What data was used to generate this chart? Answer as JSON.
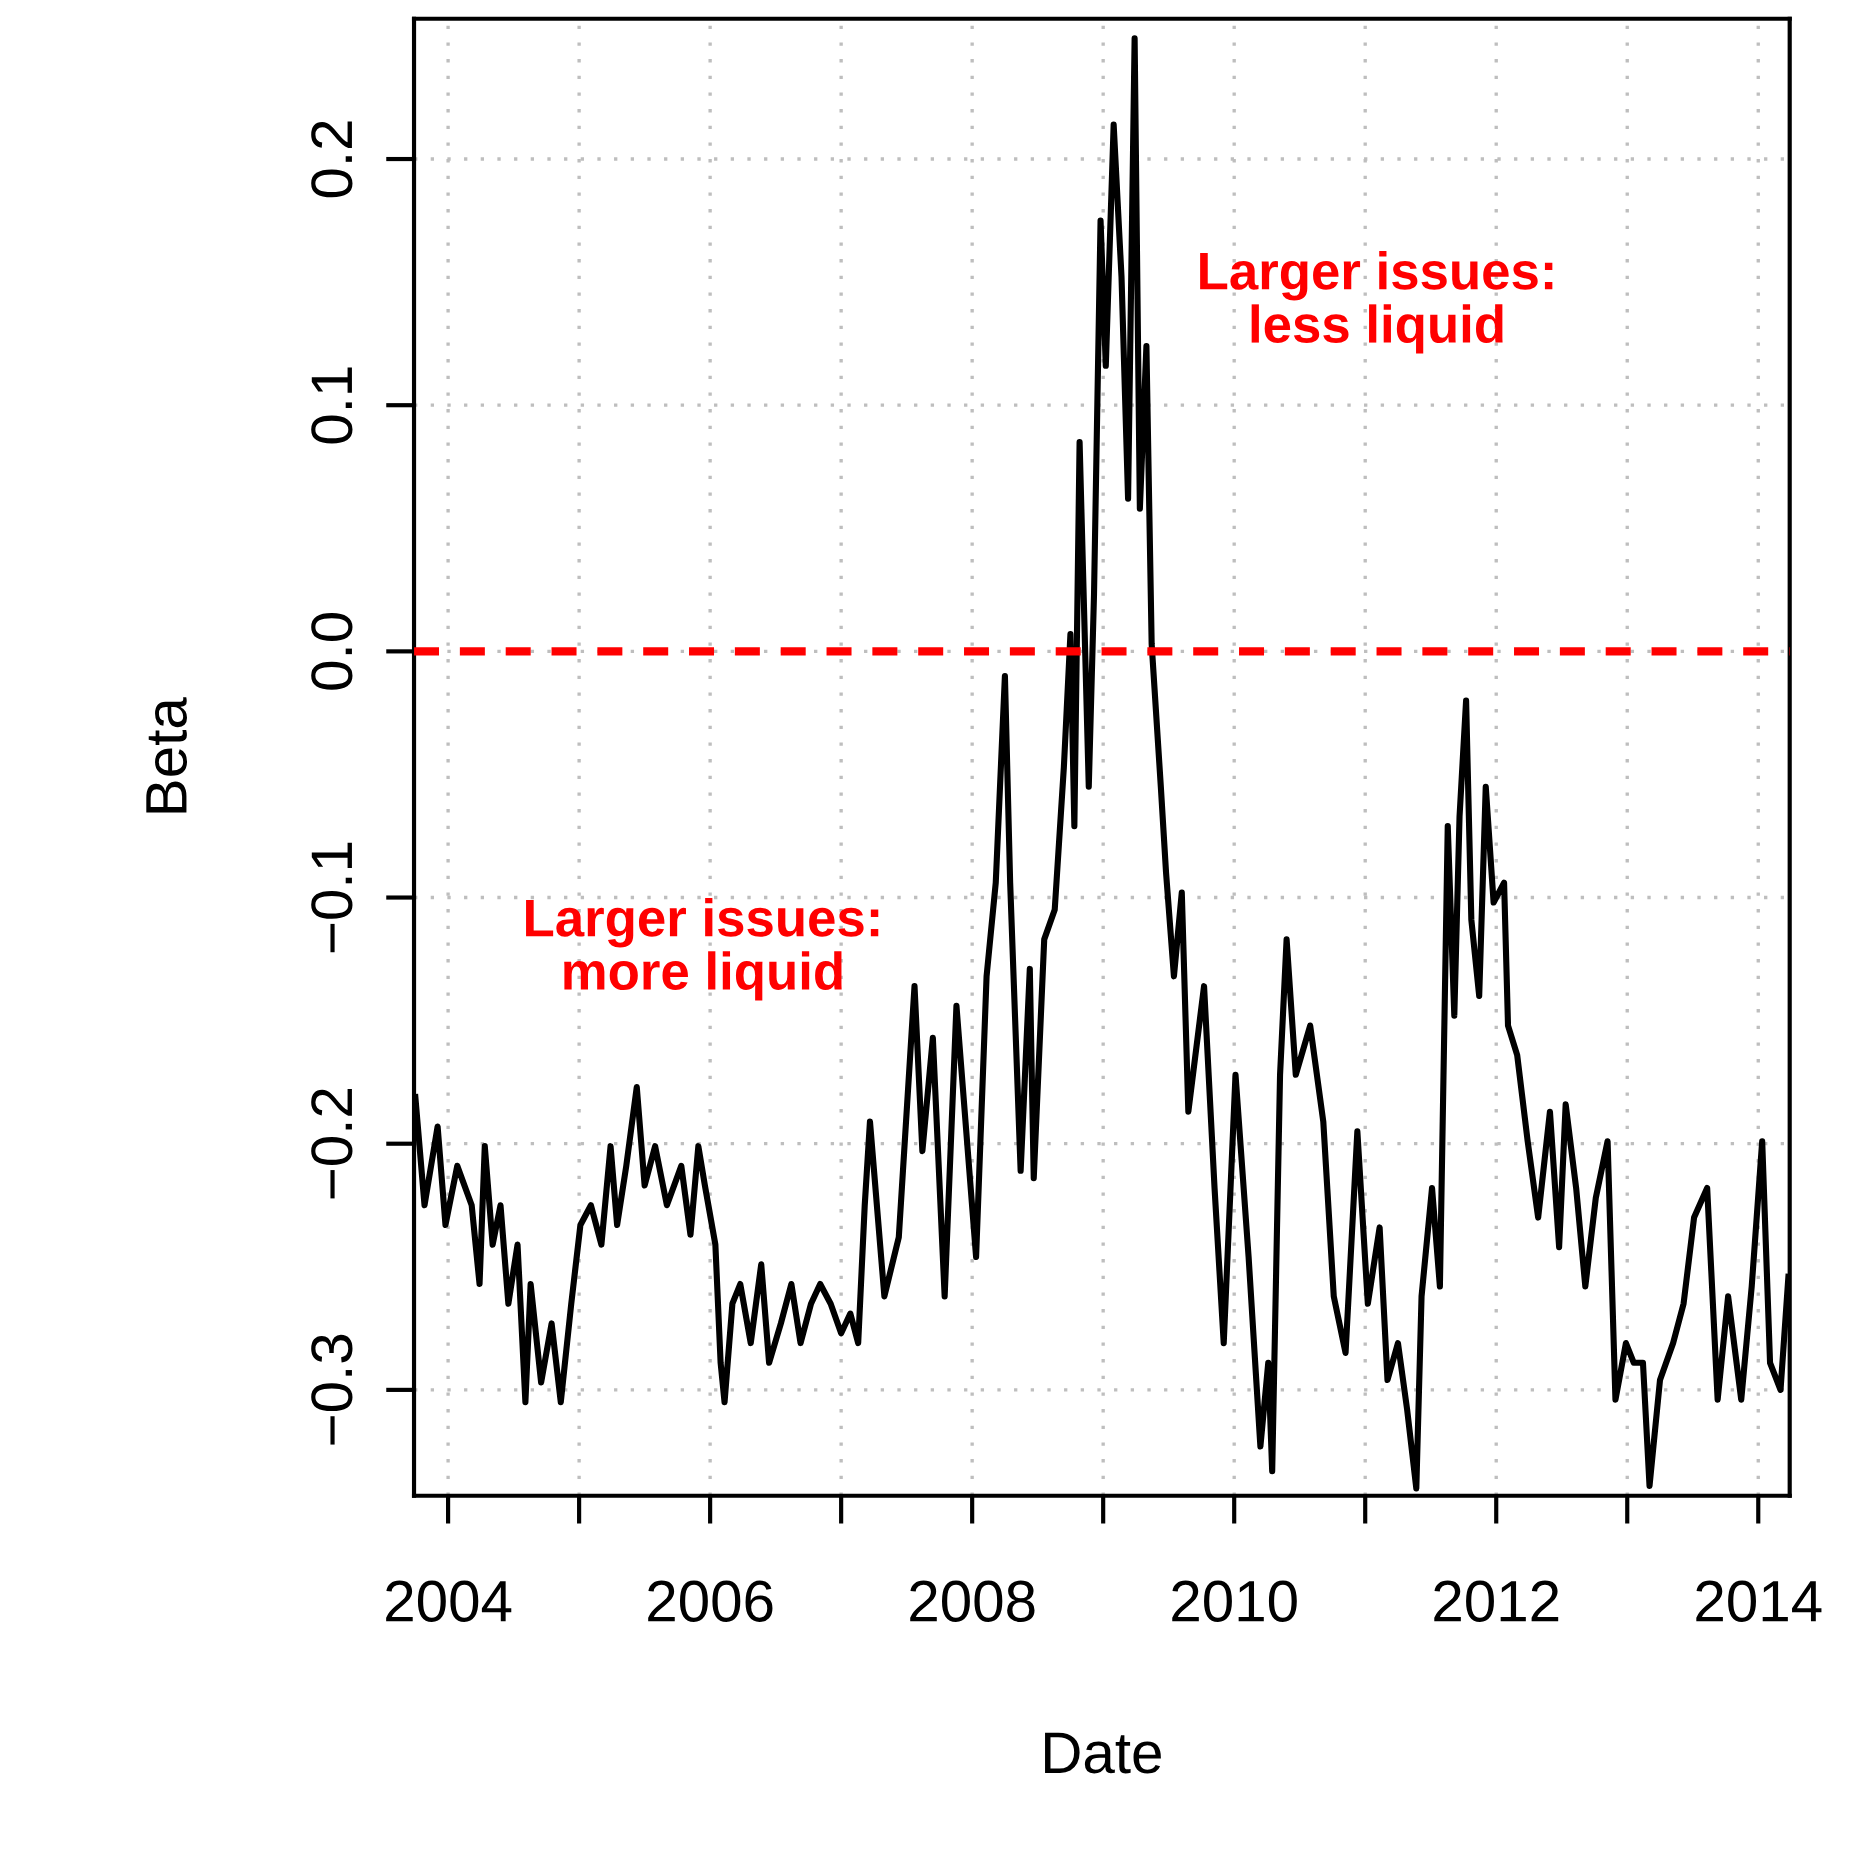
{
  "chart_data": {
    "type": "line",
    "xlabel": "Date",
    "ylabel": "Beta",
    "xlim": [
      2003.74,
      2014.24
    ],
    "ylim": [
      -0.343,
      0.257
    ],
    "xticks": [
      2004,
      {
        "value": 2005,
        "label": null
      },
      2006,
      {
        "value": 2007,
        "label": null
      },
      2008,
      {
        "value": 2009,
        "label": null
      },
      2010,
      {
        "value": 2011,
        "label": null
      },
      2012,
      {
        "value": 2013,
        "label": null
      },
      2014
    ],
    "yticks": [
      {
        "value": -0.3,
        "label": "−0.3"
      },
      {
        "value": -0.2,
        "label": "−0.2"
      },
      {
        "value": -0.1,
        "label": "−0.1"
      },
      {
        "value": 0,
        "label": "0.0"
      },
      0.1,
      0.2
    ],
    "grid": true,
    "line_style": "solid",
    "marker": "none",
    "ref_lines": [
      {
        "axis": "y",
        "value": 0,
        "color": "#ff0000",
        "line_style": "dashed"
      }
    ],
    "annotations": [
      "Larger issues:\nmore liquid",
      "Larger issues:\nless liquid"
    ],
    "series": [
      {
        "color": "#000000",
        "x": [
          2003.75,
          2003.82,
          2003.92,
          2003.98,
          2004.07,
          2004.18,
          2004.24,
          2004.28,
          2004.34,
          2004.4,
          2004.46,
          2004.53,
          2004.59,
          2004.63,
          2004.71,
          2004.79,
          2004.86,
          2004.94,
          2005.01,
          2005.09,
          2005.17,
          2005.24,
          2005.29,
          2005.36,
          2005.44,
          2005.5,
          2005.58,
          2005.67,
          2005.78,
          2005.85,
          2005.91,
          2005.96,
          2006.04,
          2006.08,
          2006.11,
          2006.17,
          2006.23,
          2006.31,
          2006.39,
          2006.45,
          2006.54,
          2006.62,
          2006.69,
          2006.77,
          2006.84,
          2006.92,
          2007.0,
          2007.07,
          2007.13,
          2007.18,
          2007.22,
          2007.33,
          2007.44,
          2007.56,
          2007.62,
          2007.7,
          2007.79,
          2007.88,
          2008.03,
          2008.11,
          2008.18,
          2008.25,
          2008.29,
          2008.37,
          2008.44,
          2008.47,
          2008.55,
          2008.63,
          2008.7,
          2008.75,
          2008.78,
          2008.82,
          2008.89,
          2008.93,
          2008.98,
          2009.02,
          2009.08,
          2009.14,
          2009.19,
          2009.24,
          2009.28,
          2009.33,
          2009.37,
          2009.44,
          2009.48,
          2009.54,
          2009.6,
          2009.65,
          2009.77,
          2009.85,
          2009.92,
          2010.01,
          2010.11,
          2010.2,
          2010.26,
          2010.29,
          2010.35,
          2010.4,
          2010.47,
          2010.58,
          2010.68,
          2010.76,
          2010.85,
          2010.94,
          2011.02,
          2011.11,
          2011.17,
          2011.25,
          2011.32,
          2011.39,
          2011.43,
          2011.51,
          2011.57,
          2011.63,
          2011.68,
          2011.72,
          2011.77,
          2011.81,
          2011.87,
          2011.92,
          2011.98,
          2012.06,
          2012.09,
          2012.16,
          2012.24,
          2012.32,
          2012.41,
          2012.48,
          2012.53,
          2012.61,
          2012.68,
          2012.76,
          2012.85,
          2012.91,
          2012.99,
          2013.05,
          2013.12,
          2013.17,
          2013.25,
          2013.35,
          2013.43,
          2013.51,
          2013.61,
          2013.69,
          2013.77,
          2013.87,
          2013.95,
          2014.03,
          2014.09,
          2014.17,
          2014.23
        ],
        "values": [
          -0.181,
          -0.225,
          -0.193,
          -0.233,
          -0.209,
          -0.225,
          -0.257,
          -0.201,
          -0.241,
          -0.225,
          -0.265,
          -0.241,
          -0.305,
          -0.257,
          -0.297,
          -0.273,
          -0.305,
          -0.265,
          -0.233,
          -0.225,
          -0.241,
          -0.201,
          -0.233,
          -0.209,
          -0.177,
          -0.217,
          -0.201,
          -0.225,
          -0.209,
          -0.237,
          -0.201,
          -0.217,
          -0.241,
          -0.289,
          -0.305,
          -0.265,
          -0.257,
          -0.281,
          -0.249,
          -0.289,
          -0.273,
          -0.257,
          -0.281,
          -0.265,
          -0.257,
          -0.265,
          -0.277,
          -0.269,
          -0.281,
          -0.225,
          -0.191,
          -0.262,
          -0.238,
          -0.136,
          -0.203,
          -0.157,
          -0.262,
          -0.144,
          -0.246,
          -0.132,
          -0.094,
          -0.01,
          -0.094,
          -0.211,
          -0.129,
          -0.214,
          -0.117,
          -0.105,
          -0.047,
          0.007,
          -0.071,
          0.085,
          -0.055,
          0.023,
          0.175,
          0.116,
          0.214,
          0.152,
          0.062,
          0.249,
          0.058,
          0.124,
          0.003,
          -0.055,
          -0.09,
          -0.132,
          -0.098,
          -0.187,
          -0.136,
          -0.218,
          -0.281,
          -0.172,
          -0.246,
          -0.323,
          -0.289,
          -0.333,
          -0.172,
          -0.117,
          -0.172,
          -0.152,
          -0.191,
          -0.262,
          -0.285,
          -0.195,
          -0.265,
          -0.234,
          -0.296,
          -0.281,
          -0.308,
          -0.34,
          -0.262,
          -0.218,
          -0.258,
          -0.071,
          -0.148,
          -0.067,
          -0.02,
          -0.109,
          -0.14,
          -0.055,
          -0.102,
          -0.094,
          -0.152,
          -0.164,
          -0.199,
          -0.23,
          -0.187,
          -0.242,
          -0.184,
          -0.218,
          -0.258,
          -0.222,
          -0.199,
          -0.304,
          -0.281,
          -0.289,
          -0.289,
          -0.339,
          -0.296,
          -0.281,
          -0.265,
          -0.23,
          -0.218,
          -0.304,
          -0.262,
          -0.304,
          -0.258,
          -0.199,
          -0.289,
          -0.3,
          -0.254
        ]
      }
    ]
  }
}
